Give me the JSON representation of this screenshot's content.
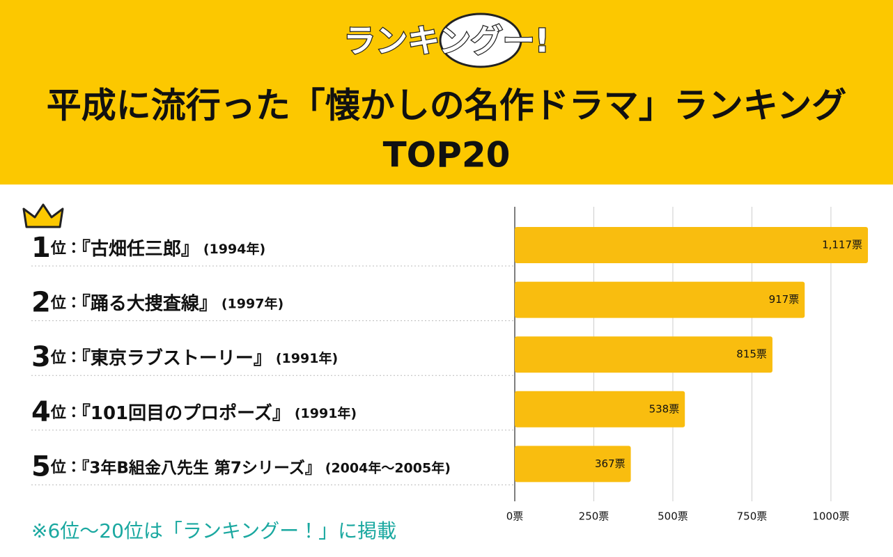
{
  "header": {
    "logo": "ランキングー!",
    "title": "平成に流行った「懐かしの名作ドラマ」ランキング",
    "subtitle": "TOP20"
  },
  "chart_data": {
    "type": "bar",
    "orientation": "horizontal",
    "ranks": [
      1,
      2,
      3,
      4,
      5
    ],
    "rank_suffix": "位：",
    "categories": [
      "『古畑任三郎』",
      "『踊る大捜査線』",
      "『東京ラブストーリー』",
      "『101回目のプロポーズ』",
      "『3年B組金八先生 第7シリーズ』"
    ],
    "years": [
      "(1994年)",
      "(1997年)",
      "(1991年)",
      "(1991年)",
      "(2004年〜2005年)"
    ],
    "values": [
      1117,
      917,
      815,
      538,
      367
    ],
    "value_labels": [
      "1,117票",
      "917票",
      "815票",
      "538票",
      "367票"
    ],
    "color": "#f9bd0f",
    "xlim": [
      0,
      1150
    ],
    "xticks": [
      {
        "value": 0,
        "label": "0票"
      },
      {
        "value": 250,
        "label": "250票"
      },
      {
        "value": 500,
        "label": "500票"
      },
      {
        "value": 750,
        "label": "750票"
      },
      {
        "value": 1000,
        "label": "1000票"
      }
    ],
    "grid": true
  },
  "footnote": "※6位〜20位は「ランキングー！」に掲載"
}
